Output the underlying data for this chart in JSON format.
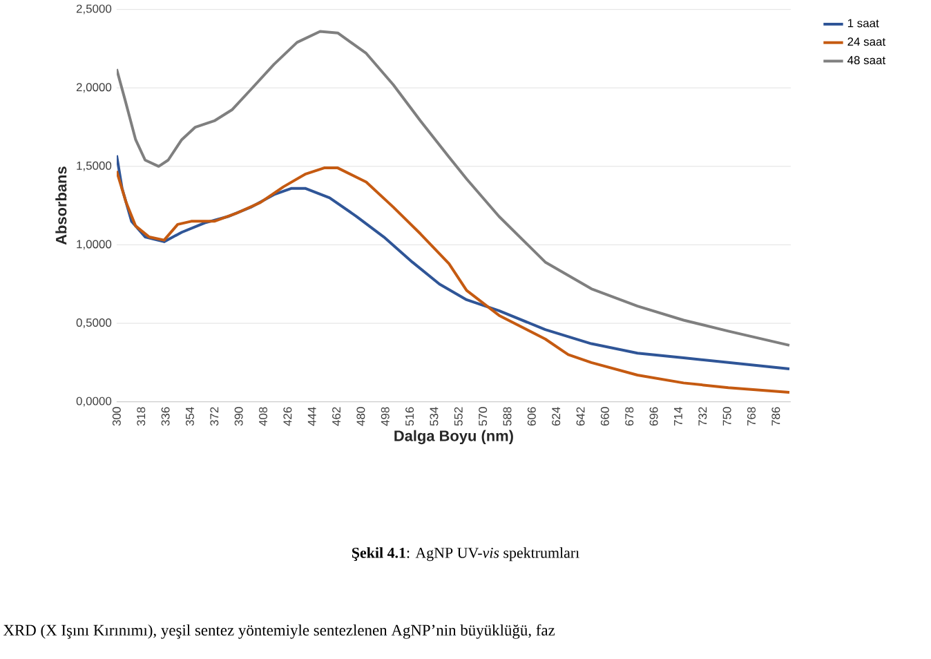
{
  "chart_data": {
    "type": "line",
    "xlabel": "Dalga Boyu (nm)",
    "ylabel": "Absorbans",
    "xlim": [
      300,
      797
    ],
    "ylim": [
      0,
      2.5
    ],
    "xticks": [
      300,
      318,
      336,
      354,
      372,
      390,
      408,
      426,
      444,
      462,
      480,
      498,
      516,
      534,
      552,
      570,
      588,
      606,
      624,
      642,
      660,
      678,
      696,
      714,
      732,
      750,
      768,
      786
    ],
    "yticks": [
      {
        "value": 0,
        "label": "0,0000"
      },
      {
        "value": 0.5,
        "label": "0,5000"
      },
      {
        "value": 1,
        "label": "1,0000"
      },
      {
        "value": 1.5,
        "label": "1,5000"
      },
      {
        "value": 2,
        "label": "2,0000"
      },
      {
        "value": 2.5,
        "label": "2,5000"
      }
    ],
    "grid": "y",
    "legend": "top right",
    "marker": "none",
    "line_style": "solid",
    "series": [
      {
        "name": "1 saat",
        "color": "#2f5597",
        "x": [
          300,
          304,
          311,
          321,
          335,
          348,
          365,
          382,
          399,
          416,
          429,
          439,
          457,
          477,
          497,
          518,
          538,
          558,
          582,
          616,
          650,
          684,
          718,
          751,
          796
        ],
        "values": [
          1.57,
          1.36,
          1.15,
          1.05,
          1.02,
          1.08,
          1.14,
          1.18,
          1.24,
          1.32,
          1.36,
          1.36,
          1.3,
          1.18,
          1.05,
          0.89,
          0.75,
          0.65,
          0.58,
          0.46,
          0.37,
          0.31,
          0.28,
          0.25,
          0.21
        ]
      },
      {
        "name": "24 saat",
        "color": "#c55a11",
        "x": [
          300,
          307,
          314,
          324,
          335,
          345,
          355,
          372,
          388,
          406,
          423,
          439,
          453,
          463,
          484,
          504,
          524,
          545,
          558,
          582,
          616,
          633,
          650,
          684,
          718,
          751,
          796
        ],
        "values": [
          1.47,
          1.27,
          1.12,
          1.05,
          1.03,
          1.13,
          1.15,
          1.15,
          1.2,
          1.27,
          1.37,
          1.45,
          1.49,
          1.49,
          1.4,
          1.24,
          1.07,
          0.88,
          0.71,
          0.55,
          0.4,
          0.3,
          0.25,
          0.17,
          0.12,
          0.09,
          0.06
        ]
      },
      {
        "name": "48 saat",
        "color": "#7f7f7f",
        "x": [
          300,
          306,
          314,
          321,
          331,
          338,
          348,
          358,
          372,
          385,
          399,
          416,
          433,
          450,
          463,
          484,
          504,
          524,
          545,
          558,
          582,
          616,
          650,
          684,
          718,
          751,
          796
        ],
        "values": [
          2.12,
          1.93,
          1.67,
          1.54,
          1.5,
          1.54,
          1.67,
          1.75,
          1.79,
          1.86,
          1.99,
          2.15,
          2.29,
          2.36,
          2.35,
          2.22,
          2.02,
          1.79,
          1.56,
          1.42,
          1.18,
          0.89,
          0.72,
          0.61,
          0.52,
          0.45,
          0.36
        ]
      }
    ],
    "annotations": [
      "**Şekil 4.1**: AgNP UV-*vis* spektrumları",
      "XRD (X Işını Kırınımı), yeşil sentez yöntemiyle sentezlenen AgNP’nin büyüklüğü, faz"
    ]
  }
}
